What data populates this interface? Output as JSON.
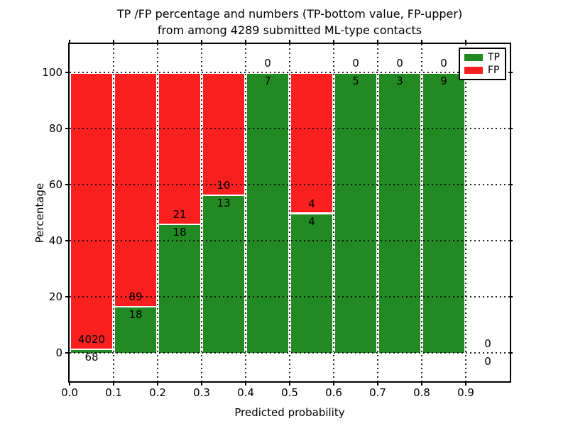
{
  "title": {
    "line1": "TP /FP percentage and numbers (TP-bottom value, FP-upper)",
    "line2": "from among 4289 submitted ML-type contacts"
  },
  "chart_data": {
    "type": "bar",
    "stacked": true,
    "title": "TP /FP percentage and numbers (TP-bottom value, FP-upper) from among 4289 submitted ML-type contacts",
    "xlabel": "Predicted probability",
    "ylabel": "Percentage",
    "xlim": [
      0.0,
      1.0
    ],
    "ylim": [
      -10,
      110
    ],
    "xticks": [
      0.0,
      0.1,
      0.2,
      0.3,
      0.4,
      0.5,
      0.6,
      0.7,
      0.8,
      0.9
    ],
    "xtick_labels": [
      "0.0",
      "0.1",
      "0.2",
      "0.3",
      "0.4",
      "0.5",
      "0.6",
      "0.7",
      "0.8",
      "0.9"
    ],
    "yticks": [
      0,
      20,
      40,
      60,
      80,
      100
    ],
    "ytick_labels": [
      "0",
      "20",
      "40",
      "60",
      "80",
      "100"
    ],
    "grid": true,
    "total_contacts": 4289,
    "legend": {
      "position": "upper right",
      "entries": [
        {
          "label": "TP",
          "color": "#228a22"
        },
        {
          "label": "FP",
          "color": "#fa2020"
        }
      ]
    },
    "series_note": "Each 0.1-wide bin shows stacked percentage: TP (green, bottom) and FP (red, top). Numeric labels are raw counts: TP count below boundary, FP count above.",
    "bins": [
      {
        "x0": 0.0,
        "x1": 0.1,
        "tp_count": 68,
        "fp_count": 4020,
        "tp_pct": 1.7,
        "fp_pct": 98.3
      },
      {
        "x0": 0.1,
        "x1": 0.2,
        "tp_count": 18,
        "fp_count": 89,
        "tp_pct": 16.8,
        "fp_pct": 83.2
      },
      {
        "x0": 0.2,
        "x1": 0.3,
        "tp_count": 18,
        "fp_count": 21,
        "tp_pct": 46.2,
        "fp_pct": 53.8
      },
      {
        "x0": 0.3,
        "x1": 0.4,
        "tp_count": 13,
        "fp_count": 10,
        "tp_pct": 56.5,
        "fp_pct": 43.5
      },
      {
        "x0": 0.4,
        "x1": 0.5,
        "tp_count": 7,
        "fp_count": 0,
        "tp_pct": 100,
        "fp_pct": 0
      },
      {
        "x0": 0.5,
        "x1": 0.6,
        "tp_count": 4,
        "fp_count": 4,
        "tp_pct": 50,
        "fp_pct": 50
      },
      {
        "x0": 0.6,
        "x1": 0.7,
        "tp_count": 5,
        "fp_count": 0,
        "tp_pct": 100,
        "fp_pct": 0
      },
      {
        "x0": 0.7,
        "x1": 0.8,
        "tp_count": 3,
        "fp_count": 0,
        "tp_pct": 100,
        "fp_pct": 0
      },
      {
        "x0": 0.8,
        "x1": 0.9,
        "tp_count": 9,
        "fp_count": 0,
        "tp_pct": 100,
        "fp_pct": 0
      },
      {
        "x0": 0.9,
        "x1": 1.0,
        "tp_count": 0,
        "fp_count": 0,
        "tp_pct": null,
        "fp_pct": null
      }
    ],
    "colors": {
      "tp": "#228a22",
      "fp": "#fa2020"
    }
  }
}
